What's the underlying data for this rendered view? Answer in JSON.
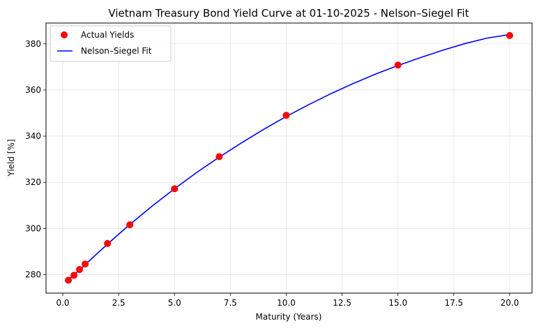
{
  "chart_data": {
    "type": "scatter",
    "title": "Vietnam Treasury Bond Yield Curve at 01-10-2025 - Nelson–Siegel Fit",
    "xlabel": "Maturity (Years)",
    "ylabel": "Yield [%]",
    "xlim": [
      -0.75,
      21.0
    ],
    "ylim": [
      272,
      389
    ],
    "xticks": [
      0.0,
      2.5,
      5.0,
      7.5,
      10.0,
      12.5,
      15.0,
      17.5,
      20.0
    ],
    "xtick_labels": [
      "0.0",
      "2.5",
      "5.0",
      "7.5",
      "10.0",
      "12.5",
      "15.0",
      "17.5",
      "20.0"
    ],
    "yticks": [
      280,
      300,
      320,
      340,
      360,
      380
    ],
    "ytick_labels": [
      "280",
      "300",
      "320",
      "340",
      "360",
      "380"
    ],
    "grid": true,
    "legend_position": "top-left",
    "series": [
      {
        "name": "Actual Yields",
        "kind": "scatter",
        "color": "#ff0000",
        "x": [
          0.25,
          0.5,
          0.75,
          1,
          2,
          3,
          5,
          7,
          10,
          15,
          20
        ],
        "y": [
          277.6,
          279.7,
          282.2,
          284.6,
          293.5,
          301.6,
          317.2,
          331.1,
          349.0,
          370.8,
          383.6
        ]
      },
      {
        "name": "Nelson–Siegel Fit",
        "kind": "line",
        "color": "#0000ff",
        "x": [
          0.25,
          0.5,
          0.75,
          1,
          1.5,
          2,
          2.5,
          3,
          4,
          5,
          6,
          7,
          8,
          9,
          10,
          11,
          12,
          13,
          14,
          15,
          16,
          17,
          18,
          19,
          20
        ],
        "y": [
          277.8,
          279.9,
          282.1,
          284.3,
          288.8,
          293.2,
          297.5,
          301.7,
          309.7,
          317.2,
          324.3,
          330.9,
          337.1,
          343.0,
          348.5,
          353.6,
          358.4,
          362.8,
          366.9,
          370.6,
          374.0,
          377.2,
          380.1,
          382.5,
          384.0
        ]
      }
    ]
  }
}
